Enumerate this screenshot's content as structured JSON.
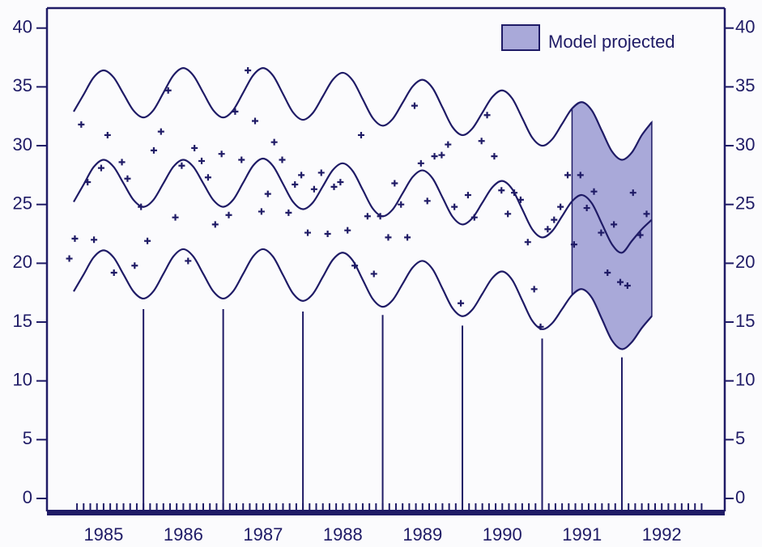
{
  "chart_data": {
    "type": "line",
    "xlim": [
      1984.79,
      1993.29
    ],
    "ylim": [
      -1.1,
      41.7
    ],
    "y2lim": [
      -1.1,
      41.7
    ],
    "xticks": [
      {
        "value": 1985.5,
        "label": "1985"
      },
      {
        "value": 1986.5,
        "label": "1986"
      },
      {
        "value": 1987.5,
        "label": "1987"
      },
      {
        "value": 1988.5,
        "label": "1988"
      },
      {
        "value": 1989.5,
        "label": "1989"
      },
      {
        "value": 1990.5,
        "label": "1990"
      },
      {
        "value": 1991.5,
        "label": "1991"
      },
      {
        "value": 1992.5,
        "label": "1992"
      }
    ],
    "yticks": [
      0,
      5,
      10,
      15,
      20,
      25,
      30,
      35,
      40
    ],
    "y2ticks": [
      0,
      5,
      10,
      15,
      20,
      25,
      30,
      35,
      40
    ],
    "minor_ticks_per_year": 12,
    "legend": "upper right",
    "x": [
      1985.125,
      1985.25,
      1985.375,
      1985.5,
      1985.625,
      1985.75,
      1985.875,
      1986,
      1986.125,
      1986.25,
      1986.375,
      1986.5,
      1986.625,
      1986.75,
      1986.875,
      1987,
      1987.125,
      1987.25,
      1987.375,
      1987.5,
      1987.625,
      1987.75,
      1987.875,
      1988,
      1988.125,
      1988.25,
      1988.375,
      1988.5,
      1988.625,
      1988.75,
      1988.875,
      1989,
      1989.125,
      1989.25,
      1989.375,
      1989.5,
      1989.625,
      1989.75,
      1989.875,
      1990,
      1990.125,
      1990.25,
      1990.375,
      1990.5,
      1990.625,
      1990.75,
      1990.875,
      1991,
      1991.125,
      1991.25,
      1991.375,
      1991.5,
      1991.625,
      1991.75,
      1991.875,
      1992,
      1992.125,
      1992.25,
      1992.375
    ],
    "series": [
      {
        "color": "#1f1b66",
        "values": [
          32.9,
          34.35,
          35.8,
          36.4,
          35.81,
          34.4,
          32.99,
          32.4,
          33.02,
          34.5,
          35.98,
          36.6,
          35.98,
          34.5,
          33.02,
          32.4,
          33.02,
          34.5,
          35.98,
          36.6,
          35.96,
          34.4,
          32.84,
          32.2,
          32.79,
          34.2,
          35.61,
          36.2,
          35.54,
          33.95,
          32.36,
          31.7,
          32.27,
          33.65,
          35.03,
          35.6,
          34.91,
          33.25,
          31.59,
          30.9,
          31.46,
          32.8,
          34.14,
          34.7,
          34.01,
          32.35,
          30.69,
          30.0,
          30.54,
          31.85,
          33.16,
          33.7,
          32.98,
          31.25,
          29.52,
          28.8,
          29.42,
          30.9,
          32.0
        ]
      },
      {
        "color": "#1f1b66",
        "values": [
          25.22,
          26.7,
          28.18,
          28.8,
          28.21,
          26.8,
          25.39,
          24.8,
          25.39,
          26.8,
          28.21,
          28.8,
          28.21,
          26.8,
          25.39,
          24.8,
          25.4,
          26.85,
          28.3,
          28.9,
          28.27,
          26.75,
          25.23,
          24.6,
          25.17,
          26.55,
          27.93,
          28.5,
          27.84,
          26.25,
          24.66,
          24.0,
          24.57,
          25.95,
          27.33,
          27.9,
          27.23,
          25.6,
          23.97,
          23.3,
          23.84,
          25.15,
          26.46,
          27.0,
          26.3,
          24.6,
          22.9,
          22.2,
          22.73,
          24.0,
          25.27,
          25.8,
          25.08,
          23.35,
          21.62,
          20.9,
          21.9,
          22.9,
          23.7
        ]
      },
      {
        "color": "#1f1b66",
        "values": [
          17.6,
          19.05,
          20.5,
          21.1,
          20.5,
          19.05,
          17.6,
          17.0,
          17.62,
          19.1,
          20.58,
          21.2,
          20.58,
          19.1,
          17.62,
          17.0,
          17.62,
          19.1,
          20.58,
          21.2,
          20.56,
          19.0,
          17.44,
          16.8,
          17.4,
          18.85,
          20.3,
          20.9,
          20.23,
          18.6,
          16.97,
          16.3,
          16.87,
          18.25,
          19.63,
          20.2,
          19.51,
          17.85,
          16.19,
          15.5,
          16.06,
          17.4,
          18.74,
          19.3,
          18.58,
          16.85,
          15.12,
          14.4,
          14.9,
          16.1,
          17.3,
          17.8,
          17.05,
          15.25,
          13.45,
          12.7,
          13.3,
          14.5,
          15.5
        ]
      }
    ],
    "band": {
      "name": "Model projected",
      "color": "#a9a9d9",
      "x": [
        1991.375,
        1991.5,
        1991.625,
        1991.75,
        1991.875,
        1992,
        1992.125,
        1992.25,
        1992.375
      ],
      "high": [
        33.16,
        33.7,
        32.98,
        31.25,
        29.52,
        28.8,
        29.42,
        30.9,
        32.0
      ],
      "low": [
        17.3,
        17.8,
        17.05,
        15.25,
        13.45,
        12.7,
        13.3,
        14.5,
        15.5
      ]
    },
    "points": {
      "color": "#1f1b66",
      "x": [
        1985.07,
        1985.14,
        1985.22,
        1985.3,
        1985.38,
        1985.47,
        1985.55,
        1985.63,
        1985.73,
        1985.8,
        1985.89,
        1985.97,
        1986.05,
        1986.13,
        1986.22,
        1986.31,
        1986.4,
        1986.48,
        1986.56,
        1986.64,
        1986.73,
        1986.81,
        1986.9,
        1986.98,
        1987.07,
        1987.15,
        1987.23,
        1987.31,
        1987.4,
        1987.48,
        1987.56,
        1987.64,
        1987.74,
        1987.82,
        1987.9,
        1987.98,
        1988.06,
        1988.14,
        1988.23,
        1988.31,
        1988.39,
        1988.47,
        1988.56,
        1988.65,
        1988.73,
        1988.81,
        1988.89,
        1988.97,
        1989.07,
        1989.15,
        1989.23,
        1989.31,
        1989.4,
        1989.48,
        1989.56,
        1989.65,
        1989.74,
        1989.82,
        1989.9,
        1989.98,
        1990.07,
        1990.15,
        1990.24,
        1990.31,
        1990.4,
        1990.49,
        1990.57,
        1990.65,
        1990.73,
        1990.82,
        1990.9,
        1990.98,
        1991.07,
        1991.15,
        1991.23,
        1991.32,
        1991.4,
        1991.48,
        1991.56,
        1991.65,
        1991.74,
        1991.82,
        1991.9,
        1991.98,
        1992.07,
        1992.14,
        1992.23,
        1992.31
      ],
      "values": [
        20.4,
        22.1,
        31.8,
        26.9,
        22.0,
        28.1,
        30.9,
        19.2,
        28.6,
        27.2,
        19.8,
        24.8,
        21.9,
        29.6,
        31.2,
        34.7,
        23.9,
        28.3,
        20.2,
        29.8,
        28.7,
        27.3,
        23.3,
        29.3,
        24.1,
        32.9,
        28.8,
        36.4,
        32.1,
        24.4,
        25.9,
        30.3,
        28.8,
        24.3,
        26.7,
        27.5,
        22.6,
        26.3,
        27.7,
        22.5,
        26.5,
        26.9,
        22.8,
        19.8,
        30.9,
        24.0,
        19.1,
        24.0,
        22.2,
        26.8,
        25.0,
        22.2,
        33.4,
        28.5,
        25.3,
        29.1,
        29.2,
        30.1,
        24.8,
        16.6,
        25.8,
        23.9,
        30.4,
        32.6,
        29.1,
        26.2,
        24.2,
        26.0,
        25.4,
        21.8,
        17.8,
        14.6,
        22.9,
        23.7,
        24.8,
        27.5,
        21.6,
        27.5,
        24.7,
        26.1,
        22.6,
        19.2,
        23.3,
        18.4,
        18.1,
        26.0,
        22.4,
        24.2
      ]
    },
    "drops": {
      "color": "#1f1b66",
      "x": [
        1986,
        1987,
        1988,
        1989,
        1990,
        1991,
        1992
      ],
      "values": [
        16.1,
        16.1,
        15.9,
        15.6,
        14.7,
        13.6,
        12.0
      ]
    }
  }
}
